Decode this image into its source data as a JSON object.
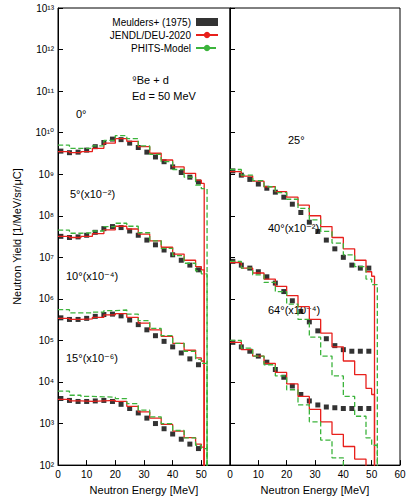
{
  "chart_data": [
    {
      "type": "line",
      "xlabel": "Neutron Energy [MeV]",
      "ylabel": "Neutron Yield [1/MeV/sr/μC]",
      "xlim": [
        0,
        60
      ],
      "xticks": [
        0,
        10,
        20,
        30,
        40,
        50
      ],
      "ylim": [
        100,
        10000000000000.0
      ],
      "yticks": [
        {
          "value": 100,
          "label": "10²"
        },
        {
          "value": 1000,
          "label": "10³"
        },
        {
          "value": 10000.0,
          "label": "10⁴"
        },
        {
          "value": 100000.0,
          "label": "10⁵"
        },
        {
          "value": 1000000.0,
          "label": "10⁶"
        },
        {
          "value": 10000000.0,
          "label": "10⁷"
        },
        {
          "value": 100000000.0,
          "label": "10⁸"
        },
        {
          "value": 1000000000.0,
          "label": "10⁹"
        },
        {
          "value": 10000000000.0,
          "label": "10¹⁰"
        },
        {
          "value": 100000000000.0,
          "label": "10¹¹"
        },
        {
          "value": 1000000000000.0,
          "label": "10¹²"
        },
        {
          "value": 10000000000000.0,
          "label": "10¹³"
        }
      ],
      "log": "y",
      "grid": false,
      "legend": "top right",
      "annotations": [
        "⁹Be + d",
        "Ed = 50 MeV",
        "0°",
        "5°(x10⁻²)",
        "10°(x10⁻⁴)",
        "15°(x10⁻⁶)"
      ],
      "series": [
        {
          "name": "Meulders+ (1975)",
          "type": "scatter",
          "marker": "square",
          "color": "#000000",
          "x": [
            1,
            4,
            7,
            10,
            13,
            16,
            19,
            22,
            25,
            28,
            31,
            34,
            37,
            40,
            43,
            46,
            49
          ],
          "values": [
            3600000000.0,
            3300000000.0,
            3400000000.0,
            3800000000.0,
            4600000000.0,
            5800000000.0,
            7000000000.0,
            6800000000.0,
            5600000000.0,
            4400000000.0,
            3400000000.0,
            2600000000.0,
            2000000000.0,
            1500000000.0,
            1100000000.0,
            850000000.0,
            650000000.0
          ]
        },
        {
          "name": "JENDL/DEU-2020",
          "type": "step",
          "line_style": "solid",
          "color": "#e8201c",
          "x": [
            0,
            4,
            8,
            12,
            16,
            20,
            24,
            28,
            32,
            36,
            40,
            44,
            48,
            50,
            51
          ],
          "values": [
            3500000000.0,
            3300000000.0,
            3500000000.0,
            4200000000.0,
            5600000000.0,
            7200000000.0,
            6200000000.0,
            4600000000.0,
            3200000000.0,
            2200000000.0,
            1500000000.0,
            1050000000.0,
            720000000.0,
            600000000.0,
            10
          ]
        },
        {
          "name": "PHITS-Model",
          "type": "step",
          "line_style": "dashed",
          "color": "#3cb43c",
          "x": [
            0,
            4,
            8,
            12,
            16,
            20,
            24,
            28,
            32,
            36,
            40,
            44,
            48,
            50,
            52
          ],
          "values": [
            5000000000.0,
            4200000000.0,
            4200000000.0,
            4800000000.0,
            6500000000.0,
            8500000000.0,
            7200000000.0,
            4800000000.0,
            3000000000.0,
            2000000000.0,
            1300000000.0,
            850000000.0,
            550000000.0,
            450000000.0,
            10
          ]
        },
        {
          "name": "Meulders+ (1975)",
          "type": "scatter",
          "marker": "square",
          "color": "#000000",
          "x": [
            1,
            4,
            7,
            10,
            13,
            16,
            19,
            22,
            25,
            28,
            31,
            34,
            37,
            40,
            43,
            46,
            49
          ],
          "values": [
            32000000.0,
            30000000.0,
            31000000.0,
            34000000.0,
            40000000.0,
            49000000.0,
            55000000.0,
            52000000.0,
            43000000.0,
            34000000.0,
            26000000.0,
            20000000.0,
            15000000.0,
            11500000.0,
            8500000.0,
            6500000.0,
            5000000.0
          ]
        },
        {
          "name": "JENDL/DEU-2020",
          "type": "step",
          "line_style": "solid",
          "color": "#e8201c",
          "x": [
            0,
            4,
            8,
            12,
            16,
            20,
            24,
            28,
            32,
            36,
            40,
            44,
            48,
            50,
            51
          ],
          "values": [
            32000000.0,
            30000000.0,
            32000000.0,
            37000000.0,
            46000000.0,
            56000000.0,
            48000000.0,
            36000000.0,
            25000000.0,
            17500000.0,
            12000000.0,
            8500000.0,
            6000000.0,
            5000000.0,
            10
          ]
        },
        {
          "name": "PHITS-Model",
          "type": "step",
          "line_style": "dashed",
          "color": "#3cb43c",
          "x": [
            0,
            4,
            8,
            12,
            16,
            20,
            24,
            28,
            32,
            36,
            40,
            44,
            48,
            50,
            52
          ],
          "values": [
            45000000.0,
            38000000.0,
            39000000.0,
            43000000.0,
            55000000.0,
            66000000.0,
            56000000.0,
            39000000.0,
            25000000.0,
            16500000.0,
            11000000.0,
            7200000.0,
            4700000.0,
            4000000.0,
            10
          ]
        },
        {
          "name": "Meulders+ (1975)",
          "type": "scatter",
          "marker": "square",
          "color": "#000000",
          "x": [
            1,
            4,
            7,
            10,
            13,
            16,
            19,
            22,
            25,
            28,
            31,
            34,
            37,
            40,
            43,
            46,
            49
          ],
          "values": [
            350000.0,
            320000.0,
            320000.0,
            340000.0,
            380000.0,
            420000.0,
            430000.0,
            390000.0,
            310000.0,
            240000.0,
            180000.0,
            130000.0,
            95000.0,
            70000.0,
            50000.0,
            36000.0,
            26000.0
          ]
        },
        {
          "name": "JENDL/DEU-2020",
          "type": "step",
          "line_style": "solid",
          "color": "#e8201c",
          "x": [
            0,
            4,
            8,
            12,
            16,
            20,
            24,
            28,
            32,
            36,
            40,
            44,
            48,
            50,
            51
          ],
          "values": [
            340000.0,
            320000.0,
            330000.0,
            360000.0,
            410000.0,
            440000.0,
            360000.0,
            260000.0,
            180000.0,
            125000.0,
            85000.0,
            58000.0,
            38000.0,
            32000.0,
            10
          ]
        },
        {
          "name": "PHITS-Model",
          "type": "step",
          "line_style": "dashed",
          "color": "#3cb43c",
          "x": [
            0,
            4,
            8,
            12,
            16,
            20,
            24,
            28,
            32,
            36,
            40,
            44,
            48,
            50,
            52
          ],
          "values": [
            550000.0,
            460000.0,
            460000.0,
            480000.0,
            520000.0,
            540000.0,
            430000.0,
            300000.0,
            195000.0,
            130000.0,
            85000.0,
            55000.0,
            35000.0,
            28000.0,
            10
          ]
        },
        {
          "name": "Meulders+ (1975)",
          "type": "scatter",
          "marker": "square",
          "color": "#000000",
          "x": [
            1,
            4,
            7,
            10,
            13,
            16,
            19,
            22,
            25,
            28,
            31,
            34,
            37,
            40,
            43,
            46,
            49
          ],
          "values": [
            4000.0,
            3600.0,
            3400.0,
            3400.0,
            3500.0,
            3600.0,
            3400.0,
            2900.0,
            2300.0,
            1800.0,
            1350.0,
            1000.0,
            750,
            560,
            420,
            320,
            250
          ]
        },
        {
          "name": "JENDL/DEU-2020",
          "type": "step",
          "line_style": "solid",
          "color": "#e8201c",
          "x": [
            0,
            4,
            8,
            12,
            16,
            20,
            24,
            28,
            32,
            36,
            40,
            44,
            48,
            50,
            51
          ],
          "values": [
            3800.0,
            3500.0,
            3400.0,
            3500.0,
            3600.0,
            3400.0,
            2600.0,
            1900.0,
            1350.0,
            950,
            660,
            460,
            320,
            270,
            10
          ]
        },
        {
          "name": "PHITS-Model",
          "type": "step",
          "line_style": "dashed",
          "color": "#3cb43c",
          "x": [
            0,
            4,
            8,
            12,
            16,
            20,
            24,
            28,
            32,
            36,
            40,
            44,
            48,
            50,
            52
          ],
          "values": [
            6000.0,
            4800.0,
            4500.0,
            4400.0,
            4300.0,
            4000.0,
            3000.0,
            2100.0,
            1450.0,
            1000.0,
            680,
            450,
            300,
            250,
            10
          ]
        }
      ]
    },
    {
      "type": "line",
      "xlabel": "Neutron Energy [MeV]",
      "xlim": [
        0,
        60
      ],
      "xticks": [
        0,
        10,
        20,
        30,
        40,
        50,
        60
      ],
      "ylim": [
        100,
        10000000000000.0
      ],
      "yticks": [
        100,
        1000,
        10000.0,
        100000.0,
        1000000.0,
        10000000.0,
        100000000.0,
        1000000000.0,
        10000000000.0,
        100000000000.0,
        1000000000000.0,
        10000000000000.0
      ],
      "log": "y",
      "grid": false,
      "tick_labels": "x",
      "annotations": [
        "25°",
        "40°(x10⁻²)",
        "64°(x10⁻⁴)"
      ],
      "series": [
        {
          "name": "Meulders+ (1975)",
          "type": "scatter",
          "marker": "square",
          "color": "#000000",
          "x": [
            1,
            4,
            7,
            10,
            13,
            16,
            19,
            22,
            25,
            28,
            31,
            34,
            37,
            40,
            43,
            46,
            49
          ],
          "values": [
            1200000000.0,
            950000000.0,
            750000000.0,
            580000000.0,
            460000000.0,
            370000000.0,
            280000000.0,
            190000000.0,
            120000000.0,
            70000000.0,
            42000000.0,
            26000000.0,
            16000000.0,
            10000000.0,
            6500000.0,
            5500000.0,
            5500000.0
          ]
        },
        {
          "name": "JENDL/DEU-2020",
          "type": "step",
          "line_style": "solid",
          "color": "#e8201c",
          "x": [
            0,
            4,
            8,
            12,
            16,
            20,
            24,
            28,
            32,
            36,
            40,
            44,
            48,
            50,
            51
          ],
          "values": [
            1150000000.0,
            900000000.0,
            680000000.0,
            500000000.0,
            380000000.0,
            280000000.0,
            180000000.0,
            100000000.0,
            55000000.0,
            30000000.0,
            16000000.0,
            8500000.0,
            4500000.0,
            3500000.0,
            10
          ]
        },
        {
          "name": "PHITS-Model",
          "type": "step",
          "line_style": "dashed",
          "color": "#3cb43c",
          "x": [
            0,
            4,
            8,
            12,
            16,
            20,
            24,
            28,
            32,
            36,
            40,
            44,
            48,
            50,
            52
          ],
          "values": [
            1300000000.0,
            950000000.0,
            700000000.0,
            500000000.0,
            360000000.0,
            250000000.0,
            150000000.0,
            80000000.0,
            42000000.0,
            22000000.0,
            11500000.0,
            6000000.0,
            3000000.0,
            2200000.0,
            10
          ]
        },
        {
          "name": "Meulders+ (1975)",
          "type": "scatter",
          "marker": "square",
          "color": "#000000",
          "x": [
            1,
            4,
            7,
            10,
            13,
            16,
            19,
            22,
            25,
            28,
            31,
            34,
            37,
            40,
            43,
            46,
            49
          ],
          "values": [
            8000000.0,
            6500000.0,
            5500000.0,
            4500000.0,
            3400000.0,
            2400000.0,
            1500000.0,
            900000.0,
            500000.0,
            280000.0,
            170000.0,
            110000.0,
            75000.0,
            60000.0,
            55000.0,
            55000.0,
            55000.0
          ]
        },
        {
          "name": "JENDL/DEU-2020",
          "type": "step",
          "line_style": "solid",
          "color": "#e8201c",
          "x": [
            0,
            4,
            8,
            12,
            16,
            20,
            24,
            28,
            32,
            36,
            40,
            44,
            48,
            50,
            51
          ],
          "values": [
            7500000.0,
            5500000.0,
            4200000.0,
            3000000.0,
            2000000.0,
            1200000.0,
            650000.0,
            320000.0,
            150000.0,
            70000.0,
            32000.0,
            15000.0,
            7000.0,
            5000.0,
            10
          ]
        },
        {
          "name": "PHITS-Model",
          "type": "step",
          "line_style": "dashed",
          "color": "#3cb43c",
          "x": [
            0,
            4,
            8,
            12,
            16,
            20,
            24,
            28,
            32,
            36,
            40,
            44,
            48,
            50,
            52
          ],
          "values": [
            8000000.0,
            5500000.0,
            3800000.0,
            2500000.0,
            1500000.0,
            750000.0,
            320000.0,
            120000.0,
            42000.0,
            14000.0,
            4500.0,
            1500.0,
            450,
            300,
            10
          ]
        },
        {
          "name": "Meulders+ (1975)",
          "type": "scatter",
          "marker": "square",
          "color": "#000000",
          "x": [
            1,
            4,
            7,
            10,
            13,
            16,
            19,
            22,
            25,
            28,
            31,
            34,
            37,
            40,
            43,
            46,
            49
          ],
          "values": [
            90000.0,
            70000.0,
            55000.0,
            42000.0,
            30000.0,
            20000.0,
            13000.0,
            8000.0,
            5000.0,
            3500.0,
            2800.0,
            2500.0,
            2400.0,
            2300.0,
            2300.0,
            2300.0,
            2300.0
          ]
        },
        {
          "name": "JENDL/DEU-2020",
          "type": "step",
          "line_style": "solid",
          "color": "#e8201c",
          "x": [
            0,
            4,
            8,
            12,
            16,
            20,
            24,
            28,
            32,
            36,
            40,
            44,
            48,
            50,
            51
          ],
          "values": [
            90000.0,
            60000.0,
            42000.0,
            28000.0,
            17000.0,
            9000.0,
            4500.0,
            2200.0,
            1100.0,
            550,
            280,
            140,
            70,
            50,
            10
          ]
        },
        {
          "name": "PHITS-Model",
          "type": "step",
          "line_style": "dashed",
          "color": "#3cb43c",
          "x": [
            0,
            4,
            8,
            12,
            16,
            20,
            24,
            28,
            32,
            36,
            40,
            44,
            48,
            50,
            52
          ],
          "values": [
            100000.0,
            65000.0,
            42000.0,
            26000.0,
            14000.0,
            6500.0,
            2800.0,
            1100.0,
            400,
            150,
            55,
            20,
            8,
            5,
            1
          ]
        }
      ]
    }
  ]
}
